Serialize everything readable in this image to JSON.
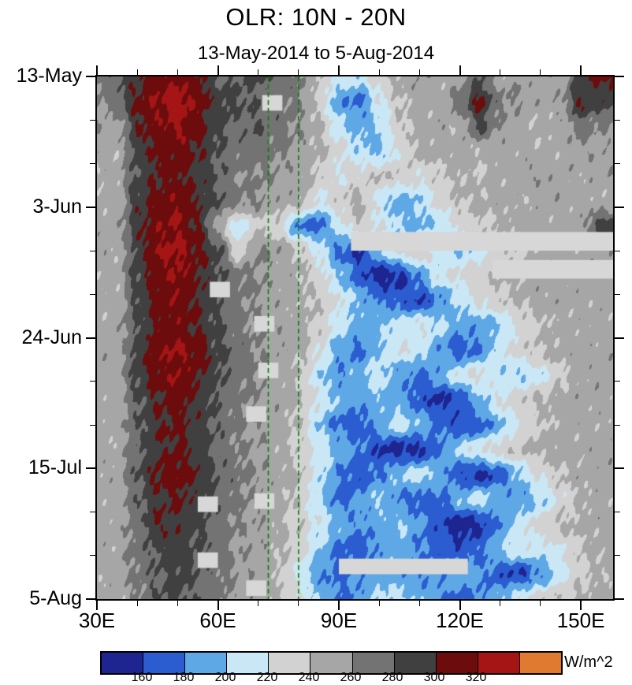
{
  "chart_data": {
    "type": "heatmap",
    "title": "OLR: 10N - 20N",
    "subtitle": "13-May-2014 to 5-Aug-2014",
    "units_label": "W/m^2",
    "x_axis": {
      "min": 30,
      "max": 158,
      "major_ticks": [
        {
          "lon": 30,
          "label": "30E"
        },
        {
          "lon": 60,
          "label": "60E"
        },
        {
          "lon": 90,
          "label": "90E"
        },
        {
          "lon": 120,
          "label": "120E"
        },
        {
          "lon": 150,
          "label": "150E"
        }
      ],
      "minor_tick_lons": [
        40,
        50,
        70,
        80,
        100,
        110,
        130,
        140
      ]
    },
    "y_axis": {
      "min_day": 0,
      "max_day": 84,
      "major_ticks": [
        {
          "day": 0,
          "label": "13-May"
        },
        {
          "day": 21,
          "label": "3-Jun"
        },
        {
          "day": 42,
          "label": "24-Jun"
        },
        {
          "day": 63,
          "label": "15-Jul"
        },
        {
          "day": 84,
          "label": "5-Aug"
        }
      ],
      "minor_tick_days": [
        7,
        14,
        28,
        35,
        49,
        56,
        70,
        77
      ]
    },
    "levels": [
      160,
      180,
      200,
      220,
      240,
      260,
      280,
      300,
      320,
      340
    ],
    "colors": [
      "#1e2490",
      "#2b5cd0",
      "#5fa8e6",
      "#c9e7f4",
      "#d2d2d2",
      "#a6a6a6",
      "#737373",
      "#404040",
      "#6d0c0c",
      "#a51515",
      "#e07a30"
    ],
    "colorbar_tick_labels": [
      "160",
      "180",
      "200",
      "220",
      "240",
      "260",
      "280",
      "300",
      "320"
    ],
    "reference_lines": {
      "color": "#0a7d0a",
      "style": "dashed",
      "lons": [
        72.5,
        80
      ]
    },
    "missing_data_color": "#d7d7d7",
    "missing_bars": [
      {
        "lon0": 71,
        "lon1": 76,
        "day0": 3,
        "day1": 5.5
      },
      {
        "lon0": 93,
        "lon1": 158,
        "day0": 25,
        "day1": 28
      },
      {
        "lon0": 128,
        "lon1": 158,
        "day0": 29.5,
        "day1": 32.5
      },
      {
        "lon0": 58,
        "lon1": 63,
        "day0": 33,
        "day1": 35.5
      },
      {
        "lon0": 69,
        "lon1": 74,
        "day0": 38.5,
        "day1": 41
      },
      {
        "lon0": 70,
        "lon1": 75,
        "day0": 46,
        "day1": 48.5
      },
      {
        "lon0": 67,
        "lon1": 72,
        "day0": 53,
        "day1": 55.5
      },
      {
        "lon0": 55,
        "lon1": 60,
        "day0": 67.5,
        "day1": 70
      },
      {
        "lon0": 69,
        "lon1": 74,
        "day0": 67,
        "day1": 69.5
      },
      {
        "lon0": 90,
        "lon1": 122,
        "day0": 77.5,
        "day1": 80
      },
      {
        "lon0": 55,
        "lon1": 60,
        "day0": 76.5,
        "day1": 79
      },
      {
        "lon0": 67,
        "lon1": 72,
        "day0": 81,
        "day1": 83.5
      }
    ],
    "grid": {
      "lon_start": 30,
      "lon_step": 5,
      "day_start": 0,
      "day_step": 4,
      "values": [
        [
          268,
          278,
          295,
          312,
          318,
          302,
          282,
          278,
          285,
          272,
          265,
          240,
          215,
          205,
          232,
          248,
          255,
          250,
          250,
          280,
          250,
          255,
          248,
          252,
          285,
          305
        ],
        [
          260,
          272,
          305,
          320,
          330,
          315,
          290,
          282,
          276,
          268,
          262,
          235,
          185,
          175,
          215,
          240,
          250,
          245,
          270,
          305,
          265,
          258,
          250,
          255,
          300,
          290
        ],
        [
          255,
          250,
          298,
          315,
          322,
          305,
          285,
          275,
          280,
          270,
          258,
          242,
          210,
          190,
          200,
          235,
          248,
          252,
          245,
          285,
          255,
          248,
          242,
          250,
          270,
          260
        ],
        [
          250,
          245,
          290,
          308,
          312,
          300,
          280,
          270,
          268,
          262,
          255,
          245,
          225,
          205,
          195,
          225,
          245,
          250,
          248,
          244,
          250,
          252,
          246,
          248,
          255,
          252
        ],
        [
          245,
          252,
          285,
          300,
          305,
          295,
          278,
          262,
          262,
          256,
          250,
          238,
          220,
          230,
          240,
          235,
          225,
          235,
          245,
          240,
          248,
          252,
          255,
          250,
          248,
          255
        ],
        [
          250,
          248,
          292,
          310,
          315,
          298,
          280,
          266,
          260,
          252,
          248,
          215,
          235,
          245,
          210,
          190,
          200,
          225,
          240,
          246,
          250,
          245,
          248,
          252,
          250,
          246
        ],
        [
          248,
          252,
          295,
          315,
          320,
          300,
          250,
          205,
          235,
          230,
          180,
          170,
          210,
          235,
          220,
          200,
          195,
          205,
          225,
          235,
          242,
          248,
          250,
          246,
          252,
          290
        ],
        [
          252,
          246,
          290,
          318,
          325,
          305,
          285,
          230,
          262,
          255,
          240,
          215,
          175,
          160,
          195,
          225,
          235,
          210,
          200,
          210,
          230,
          240,
          248,
          252,
          248,
          252
        ],
        [
          246,
          250,
          288,
          312,
          320,
          302,
          283,
          268,
          260,
          252,
          246,
          230,
          200,
          170,
          150,
          155,
          185,
          215,
          225,
          235,
          242,
          246,
          250,
          248,
          252,
          250
        ],
        [
          250,
          247,
          285,
          310,
          315,
          298,
          280,
          265,
          258,
          250,
          245,
          240,
          220,
          195,
          180,
          170,
          160,
          180,
          205,
          225,
          235,
          242,
          248,
          250,
          246,
          252
        ],
        [
          247,
          251,
          282,
          305,
          312,
          300,
          281,
          266,
          259,
          253,
          248,
          235,
          210,
          190,
          195,
          210,
          220,
          205,
          190,
          185,
          200,
          225,
          240,
          246,
          250,
          248
        ],
        [
          251,
          248,
          290,
          315,
          322,
          308,
          286,
          270,
          261,
          254,
          246,
          225,
          190,
          175,
          200,
          220,
          210,
          185,
          170,
          180,
          210,
          230,
          242,
          248,
          252,
          250
        ],
        [
          249,
          252,
          288,
          312,
          318,
          304,
          284,
          268,
          260,
          250,
          240,
          205,
          180,
          195,
          210,
          185,
          175,
          190,
          215,
          225,
          205,
          200,
          210,
          235,
          248,
          250
        ],
        [
          252,
          248,
          280,
          300,
          308,
          295,
          278,
          264,
          258,
          252,
          242,
          220,
          195,
          185,
          195,
          190,
          170,
          155,
          165,
          195,
          220,
          235,
          244,
          248,
          250,
          252
        ],
        [
          248,
          250,
          278,
          298,
          305,
          292,
          276,
          262,
          257,
          250,
          238,
          200,
          175,
          170,
          190,
          210,
          195,
          175,
          165,
          170,
          195,
          220,
          238,
          246,
          250,
          248
        ],
        [
          250,
          246,
          275,
          295,
          302,
          290,
          274,
          262,
          256,
          248,
          235,
          215,
          195,
          180,
          160,
          150,
          155,
          180,
          205,
          220,
          230,
          240,
          245,
          250,
          248,
          252
        ],
        [
          247,
          250,
          282,
          305,
          312,
          298,
          280,
          266,
          258,
          250,
          240,
          210,
          180,
          165,
          180,
          200,
          210,
          190,
          165,
          155,
          170,
          200,
          225,
          240,
          248,
          250
        ],
        [
          251,
          247,
          276,
          296,
          303,
          290,
          275,
          263,
          257,
          248,
          236,
          205,
          175,
          185,
          200,
          180,
          170,
          175,
          195,
          210,
          190,
          185,
          200,
          225,
          242,
          248
        ],
        [
          248,
          252,
          270,
          300,
          295,
          285,
          272,
          260,
          255,
          246,
          235,
          215,
          195,
          180,
          190,
          200,
          185,
          165,
          150,
          155,
          180,
          210,
          230,
          242,
          246,
          250
        ],
        [
          250,
          248,
          268,
          285,
          290,
          280,
          270,
          258,
          253,
          244,
          232,
          200,
          175,
          170,
          185,
          195,
          180,
          170,
          165,
          175,
          200,
          215,
          210,
          220,
          238,
          246
        ],
        [
          246,
          250,
          265,
          280,
          288,
          278,
          268,
          257,
          252,
          240,
          215,
          185,
          175,
          180,
          195,
          185,
          180,
          185,
          195,
          185,
          165,
          160,
          180,
          210,
          235,
          244
        ],
        [
          249,
          247,
          262,
          278,
          284,
          275,
          266,
          256,
          251,
          242,
          225,
          195,
          180,
          185,
          200,
          210,
          195,
          180,
          175,
          180,
          195,
          215,
          230,
          238,
          244,
          248
        ]
      ]
    }
  }
}
